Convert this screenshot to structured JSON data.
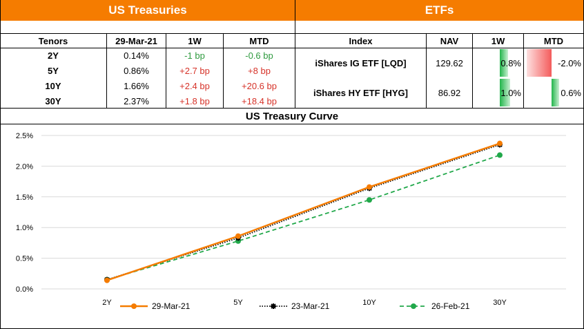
{
  "treasuries": {
    "title": "US Treasuries",
    "headers": [
      "Tenors",
      "29-Mar-21",
      "1W",
      "MTD"
    ],
    "rows": [
      {
        "tenor": "2Y",
        "yield": "0.14%",
        "w1": "-1 bp",
        "mtd": "-0.6 bp"
      },
      {
        "tenor": "5Y",
        "yield": "0.86%",
        "w1": "+2.7 bp",
        "mtd": "+8 bp"
      },
      {
        "tenor": "10Y",
        "yield": "1.66%",
        "w1": "+2.4 bp",
        "mtd": "+20.6 bp"
      },
      {
        "tenor": "30Y",
        "yield": "2.37%",
        "w1": "+1.8 bp",
        "mtd": "+18.4 bp"
      }
    ],
    "colors": {
      "positive": "#d63228",
      "negative": "#2e9a3e"
    }
  },
  "etfs": {
    "title": "ETFs",
    "headers": [
      "Index",
      "NAV",
      "1W",
      "MTD"
    ],
    "rows": [
      {
        "name": "iShares IG ETF [LQD]",
        "nav": "129.62",
        "w1": "0.8%",
        "mtd": "-2.0%",
        "w1_value": 0.8,
        "mtd_value": -2.0
      },
      {
        "name": "iShares HY ETF [HYG]",
        "nav": "86.92",
        "w1": "1.0%",
        "mtd": "0.6%",
        "w1_value": 1.0,
        "mtd_value": 0.6
      }
    ],
    "bar_colors": {
      "positive": "#21b54a",
      "negative": "#f45b5b"
    }
  },
  "header_color": "#f57c00",
  "chart_data": {
    "type": "line",
    "title": "US Treasury Curve",
    "categories": [
      "2Y",
      "5Y",
      "10Y",
      "30Y"
    ],
    "y_ticks": [
      "2.5%",
      "2.0%",
      "1.5%",
      "1.0%",
      "0.5%",
      "0.0%"
    ],
    "ylim": [
      0,
      2.5
    ],
    "series": [
      {
        "name": "29-Mar-21",
        "values": [
          0.14,
          0.86,
          1.66,
          2.37
        ],
        "color": "#f57c00",
        "style": "solid"
      },
      {
        "name": "23-Mar-21",
        "values": [
          0.15,
          0.83,
          1.64,
          2.35
        ],
        "color": "#000000",
        "style": "dotted"
      },
      {
        "name": "26-Feb-21",
        "values": [
          0.15,
          0.78,
          1.45,
          2.18
        ],
        "color": "#21a84a",
        "style": "dashed"
      }
    ],
    "grid": true,
    "legend_position": "bottom"
  }
}
